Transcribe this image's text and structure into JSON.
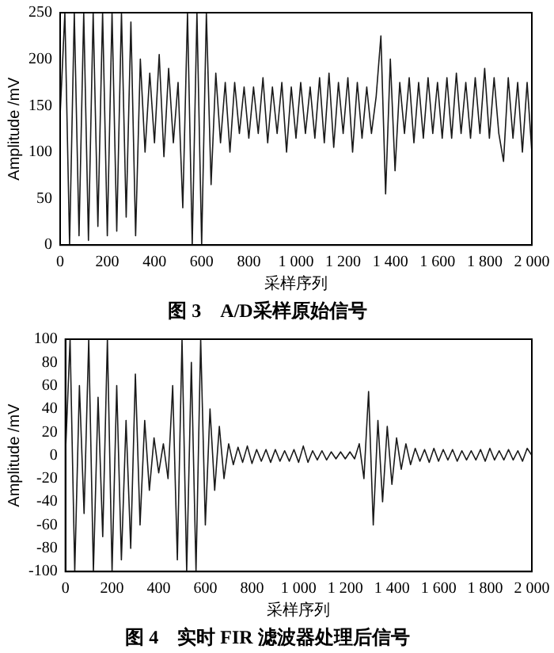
{
  "chart_data": [
    {
      "type": "line",
      "title": "图 3　A/D采样原始信号",
      "xlabel": "采样序列",
      "ylabel": "Amplitude /mV",
      "color": "#1a1a1a",
      "grid": false,
      "legend": false,
      "marker": "none",
      "line_style": "solid",
      "xlim": [
        0,
        2000
      ],
      "xticks": [
        0,
        200,
        400,
        600,
        800,
        {
          "value": 1000,
          "label": "1 000"
        },
        {
          "value": 1200,
          "label": "1 200"
        },
        {
          "value": 1400,
          "label": "1 400"
        },
        {
          "value": 1600,
          "label": "1 600"
        },
        {
          "value": 1800,
          "label": "1 800"
        },
        {
          "value": 2000,
          "label": "2 000"
        }
      ],
      "ylim": [
        0,
        250
      ],
      "yticks": [
        0,
        50,
        100,
        150,
        200,
        250
      ],
      "x": [
        0,
        20,
        40,
        60,
        80,
        100,
        120,
        140,
        160,
        180,
        200,
        220,
        240,
        260,
        280,
        300,
        320,
        340,
        360,
        380,
        400,
        420,
        440,
        460,
        480,
        500,
        520,
        540,
        560,
        580,
        600,
        620,
        640,
        660,
        680,
        700,
        720,
        740,
        760,
        780,
        800,
        820,
        840,
        860,
        880,
        900,
        920,
        940,
        960,
        980,
        1000,
        1020,
        1040,
        1060,
        1080,
        1100,
        1120,
        1140,
        1160,
        1180,
        1200,
        1220,
        1240,
        1260,
        1280,
        1300,
        1320,
        1340,
        1360,
        1380,
        1400,
        1420,
        1440,
        1460,
        1480,
        1500,
        1520,
        1540,
        1560,
        1580,
        1600,
        1620,
        1640,
        1660,
        1680,
        1700,
        1720,
        1740,
        1760,
        1780,
        1800,
        1820,
        1840,
        1860,
        1880,
        1900,
        1920,
        1940,
        1960,
        1980,
        2000
      ],
      "values": [
        140,
        250,
        0,
        250,
        10,
        250,
        5,
        250,
        20,
        250,
        10,
        250,
        15,
        250,
        30,
        240,
        10,
        200,
        100,
        185,
        110,
        205,
        95,
        190,
        110,
        175,
        40,
        250,
        0,
        250,
        0,
        250,
        65,
        185,
        110,
        175,
        100,
        175,
        120,
        170,
        115,
        170,
        120,
        180,
        110,
        170,
        120,
        175,
        100,
        170,
        115,
        175,
        120,
        170,
        115,
        180,
        110,
        185,
        105,
        175,
        120,
        180,
        100,
        175,
        115,
        170,
        120,
        160,
        225,
        55,
        200,
        80,
        175,
        120,
        180,
        110,
        175,
        115,
        180,
        120,
        175,
        115,
        180,
        115,
        185,
        120,
        175,
        115,
        180,
        120,
        190,
        115,
        180,
        120,
        90,
        180,
        115,
        175,
        100,
        175,
        100
      ]
    },
    {
      "type": "line",
      "title": "图 4　实时 FIR 滤波器处理后信号",
      "xlabel": "采样序列",
      "ylabel": "Amplitude /mV",
      "color": "#1a1a1a",
      "grid": false,
      "legend": false,
      "marker": "none",
      "line_style": "solid",
      "xlim": [
        0,
        2000
      ],
      "xticks": [
        0,
        200,
        400,
        600,
        800,
        {
          "value": 1000,
          "label": "1 000"
        },
        {
          "value": 1200,
          "label": "1 200"
        },
        {
          "value": 1400,
          "label": "1 400"
        },
        {
          "value": 1600,
          "label": "1 600"
        },
        {
          "value": 1800,
          "label": "1 800"
        },
        {
          "value": 2000,
          "label": "2 000"
        }
      ],
      "ylim": [
        -100,
        100
      ],
      "yticks": [
        -100,
        -80,
        -60,
        -40,
        -20,
        0,
        20,
        40,
        60,
        80,
        100
      ],
      "x": [
        0,
        20,
        40,
        60,
        80,
        100,
        120,
        140,
        160,
        180,
        200,
        220,
        240,
        260,
        280,
        300,
        320,
        340,
        360,
        380,
        400,
        420,
        440,
        460,
        480,
        500,
        520,
        540,
        560,
        580,
        600,
        620,
        640,
        660,
        680,
        700,
        720,
        740,
        760,
        780,
        800,
        820,
        840,
        860,
        880,
        900,
        920,
        940,
        960,
        980,
        1000,
        1020,
        1040,
        1060,
        1080,
        1100,
        1120,
        1140,
        1160,
        1180,
        1200,
        1220,
        1240,
        1260,
        1280,
        1300,
        1320,
        1340,
        1360,
        1380,
        1400,
        1420,
        1440,
        1460,
        1480,
        1500,
        1520,
        1540,
        1560,
        1580,
        1600,
        1620,
        1640,
        1660,
        1680,
        1700,
        1720,
        1740,
        1760,
        1780,
        1800,
        1820,
        1840,
        1860,
        1880,
        1900,
        1920,
        1940,
        1960,
        1980,
        2000
      ],
      "values": [
        0,
        100,
        -100,
        60,
        -50,
        100,
        -100,
        50,
        -70,
        100,
        -100,
        60,
        -90,
        30,
        -80,
        70,
        -60,
        30,
        -30,
        15,
        -15,
        10,
        -20,
        60,
        -90,
        100,
        -100,
        80,
        -100,
        100,
        -60,
        40,
        -30,
        25,
        -20,
        10,
        -8,
        7,
        -6,
        8,
        -7,
        5,
        -5,
        5,
        -6,
        5,
        -5,
        4,
        -5,
        5,
        -6,
        8,
        -6,
        4,
        -4,
        4,
        -4,
        3,
        -3,
        3,
        -3,
        3,
        -3,
        10,
        -20,
        55,
        -60,
        30,
        -40,
        25,
        -25,
        15,
        -12,
        10,
        -8,
        6,
        -5,
        5,
        -6,
        6,
        -5,
        5,
        -4,
        5,
        -5,
        4,
        -4,
        4,
        -4,
        5,
        -5,
        6,
        -4,
        4,
        -4,
        5,
        -4,
        4,
        -5,
        6,
        0
      ]
    }
  ]
}
